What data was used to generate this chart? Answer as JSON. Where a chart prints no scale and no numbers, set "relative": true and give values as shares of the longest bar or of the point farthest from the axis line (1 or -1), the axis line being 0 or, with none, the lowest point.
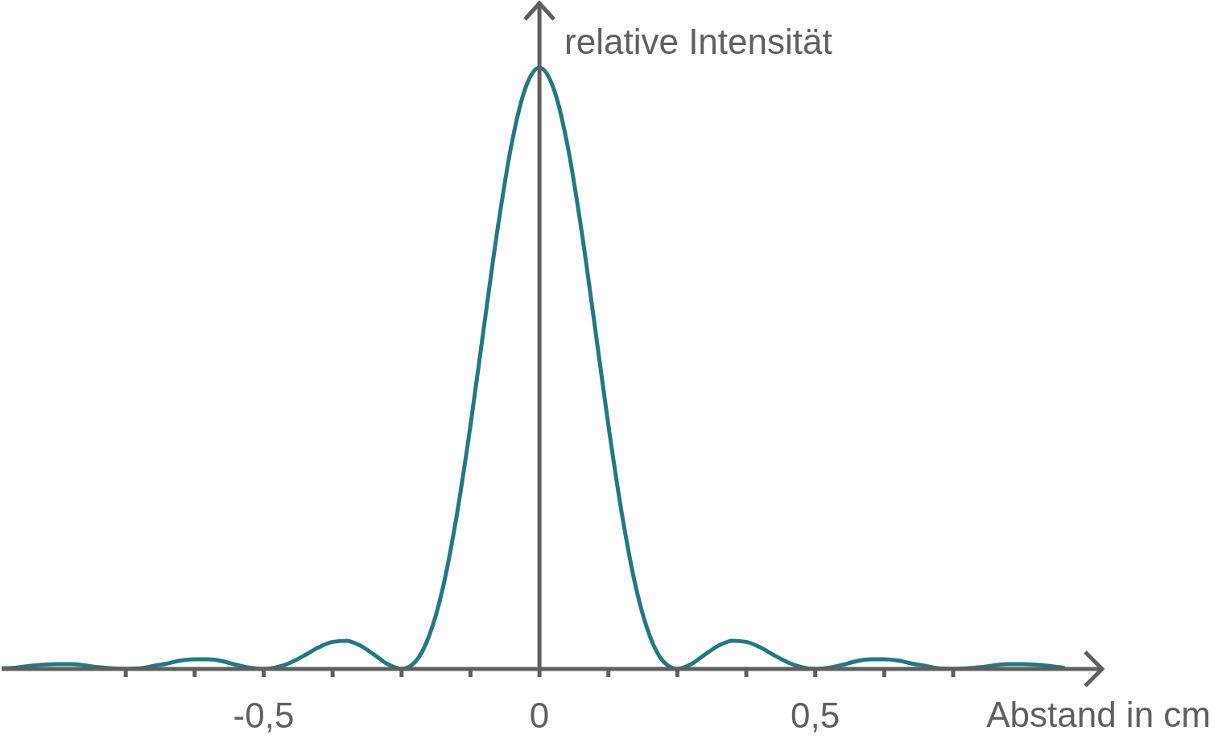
{
  "chart_data": {
    "type": "line",
    "xlabel": "Abstand in cm",
    "ylabel": "relative Intensität",
    "relative": true,
    "color": "#27777f",
    "marker": "none",
    "xlim": [
      -0.975,
      1.02
    ],
    "xticks": [
      {
        "value": -0.75,
        "label": null
      },
      {
        "value": -0.625,
        "label": null
      },
      {
        "value": -0.5,
        "label": "-0,5"
      },
      {
        "value": -0.375,
        "label": null
      },
      {
        "value": -0.25,
        "label": null
      },
      {
        "value": -0.125,
        "label": null
      },
      0,
      {
        "value": 0.125,
        "label": null
      },
      {
        "value": 0.25,
        "label": null
      },
      {
        "value": 0.375,
        "label": null
      },
      {
        "value": 0.5,
        "label": "0,5"
      },
      {
        "value": 0.625,
        "label": null
      },
      {
        "value": 0.75,
        "label": null
      }
    ],
    "x": [
      -0.975,
      -0.95,
      -0.925,
      -0.9,
      -0.875,
      -0.85,
      -0.825,
      -0.8,
      -0.775,
      -0.75,
      -0.725,
      -0.7,
      -0.675,
      -0.65,
      -0.625,
      -0.6,
      -0.575,
      -0.55,
      -0.525,
      -0.5,
      -0.475,
      -0.45,
      -0.425,
      -0.4,
      -0.375,
      -0.35,
      -0.325,
      -0.3,
      -0.275,
      -0.25,
      -0.225,
      -0.2,
      -0.175,
      -0.15,
      -0.125,
      -0.1,
      -0.075,
      -0.05,
      -0.025,
      0,
      0.025,
      0.05,
      0.075,
      0.1,
      0.125,
      0.15,
      0.175,
      0.2,
      0.225,
      0.25,
      0.275,
      0.3,
      0.325,
      0.35,
      0.375,
      0.4,
      0.425,
      0.45,
      0.475,
      0.5,
      0.525,
      0.55,
      0.575,
      0.6,
      0.625,
      0.65,
      0.675,
      0.7,
      0.725,
      0.75,
      0.775,
      0.8,
      0.825,
      0.85,
      0.875,
      0.9,
      0.925,
      0.95
    ],
    "values": [
      0.001,
      0.002,
      0.005,
      0.007,
      0.008,
      0.008,
      0.006,
      0.003,
      0.001,
      0,
      0.001,
      0.005,
      0.009,
      0.014,
      0.016,
      0.016,
      0.013,
      0.007,
      0.002,
      0,
      0.003,
      0.011,
      0.023,
      0.036,
      0.045,
      0.047,
      0.039,
      0.024,
      0.008,
      0,
      0.012,
      0.055,
      0.135,
      0.255,
      0.405,
      0.573,
      0.737,
      0.875,
      0.967,
      1,
      0.967,
      0.875,
      0.737,
      0.573,
      0.405,
      0.255,
      0.135,
      0.055,
      0.012,
      0,
      0.008,
      0.024,
      0.039,
      0.047,
      0.045,
      0.036,
      0.023,
      0.011,
      0.003,
      0,
      0.002,
      0.007,
      0.013,
      0.016,
      0.016,
      0.014,
      0.009,
      0.005,
      0.001,
      0,
      0.001,
      0.003,
      0.006,
      0.008,
      0.008,
      0.007,
      0.005,
      0.002
    ]
  }
}
